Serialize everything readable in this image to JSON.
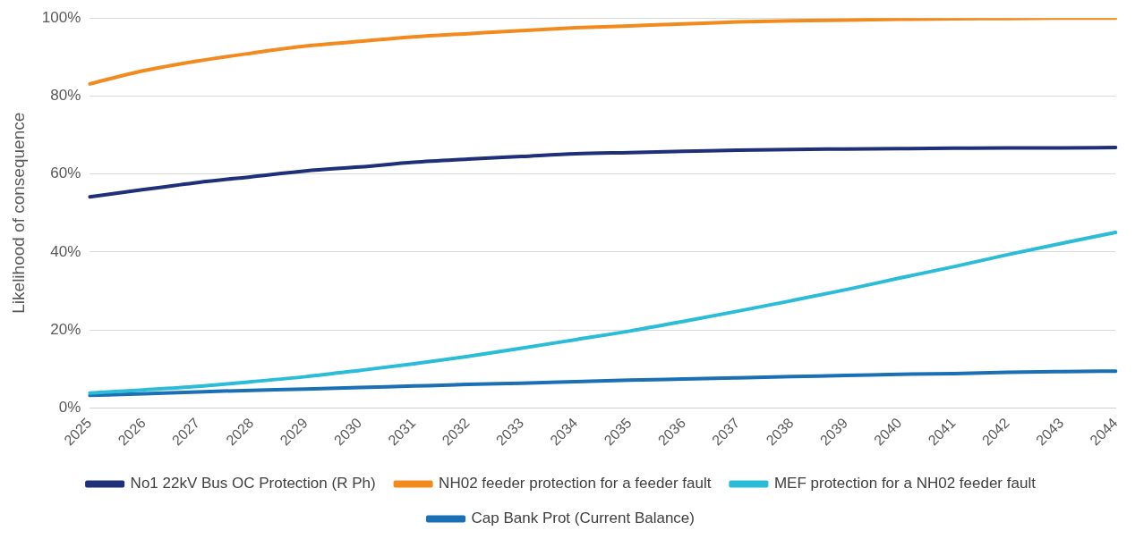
{
  "chart_data": {
    "type": "line",
    "ylabel": "Likelihood of consequence",
    "categories": [
      "2025",
      "2026",
      "2027",
      "2028",
      "2029",
      "2030",
      "2031",
      "2032",
      "2033",
      "2034",
      "2035",
      "2036",
      "2037",
      "2038",
      "2039",
      "2040",
      "2041",
      "2042",
      "2043",
      "2044"
    ],
    "series": [
      {
        "name": "No1 22kV Bus OC Protection (R Ph)",
        "color": "#1f2f7a",
        "values": [
          54.1,
          56,
          57.8,
          59.3,
          60.8,
          61.8,
          63,
          63.8,
          64.5,
          65.2,
          65.5,
          65.8,
          66.1,
          66.3,
          66.4,
          66.5,
          66.6,
          66.7,
          66.7,
          66.8
        ]
      },
      {
        "name": "NH02 feeder protection for a feeder fault",
        "color": "#f28a1e",
        "values": [
          83.1,
          86.5,
          89,
          91,
          92.8,
          94,
          95.2,
          96,
          96.8,
          97.5,
          98,
          98.5,
          99,
          99.3,
          99.5,
          99.7,
          99.8,
          99.9,
          100,
          100
        ]
      },
      {
        "name": "MEF protection for a NH02 feeder fault",
        "color": "#2bbcd8",
        "values": [
          3.8,
          4.6,
          5.5,
          6.7,
          8,
          9.6,
          11.3,
          13.2,
          15.3,
          17.5,
          19.7,
          22.2,
          24.8,
          27.5,
          30.3,
          33.3,
          36.2,
          39.3,
          42.2,
          45
        ]
      },
      {
        "name": "Cap Bank Prot (Current Balance)",
        "color": "#1a6fb5",
        "values": [
          3.2,
          3.6,
          4.1,
          4.5,
          4.8,
          5.2,
          5.6,
          6,
          6.3,
          6.7,
          7.1,
          7.4,
          7.7,
          8,
          8.3,
          8.6,
          8.8,
          9.1,
          9.3,
          9.4
        ]
      }
    ],
    "ylim": [
      0,
      100
    ],
    "yticks": [
      {
        "value": 0,
        "label": "0%"
      },
      {
        "value": 20,
        "label": "20%"
      },
      {
        "value": 40,
        "label": "40%"
      },
      {
        "value": 60,
        "label": "60%"
      },
      {
        "value": 80,
        "label": "80%"
      },
      {
        "value": 100,
        "label": "100%"
      }
    ],
    "grid": "y",
    "legend": "bottom",
    "marker": "none",
    "line_style": "solid"
  }
}
